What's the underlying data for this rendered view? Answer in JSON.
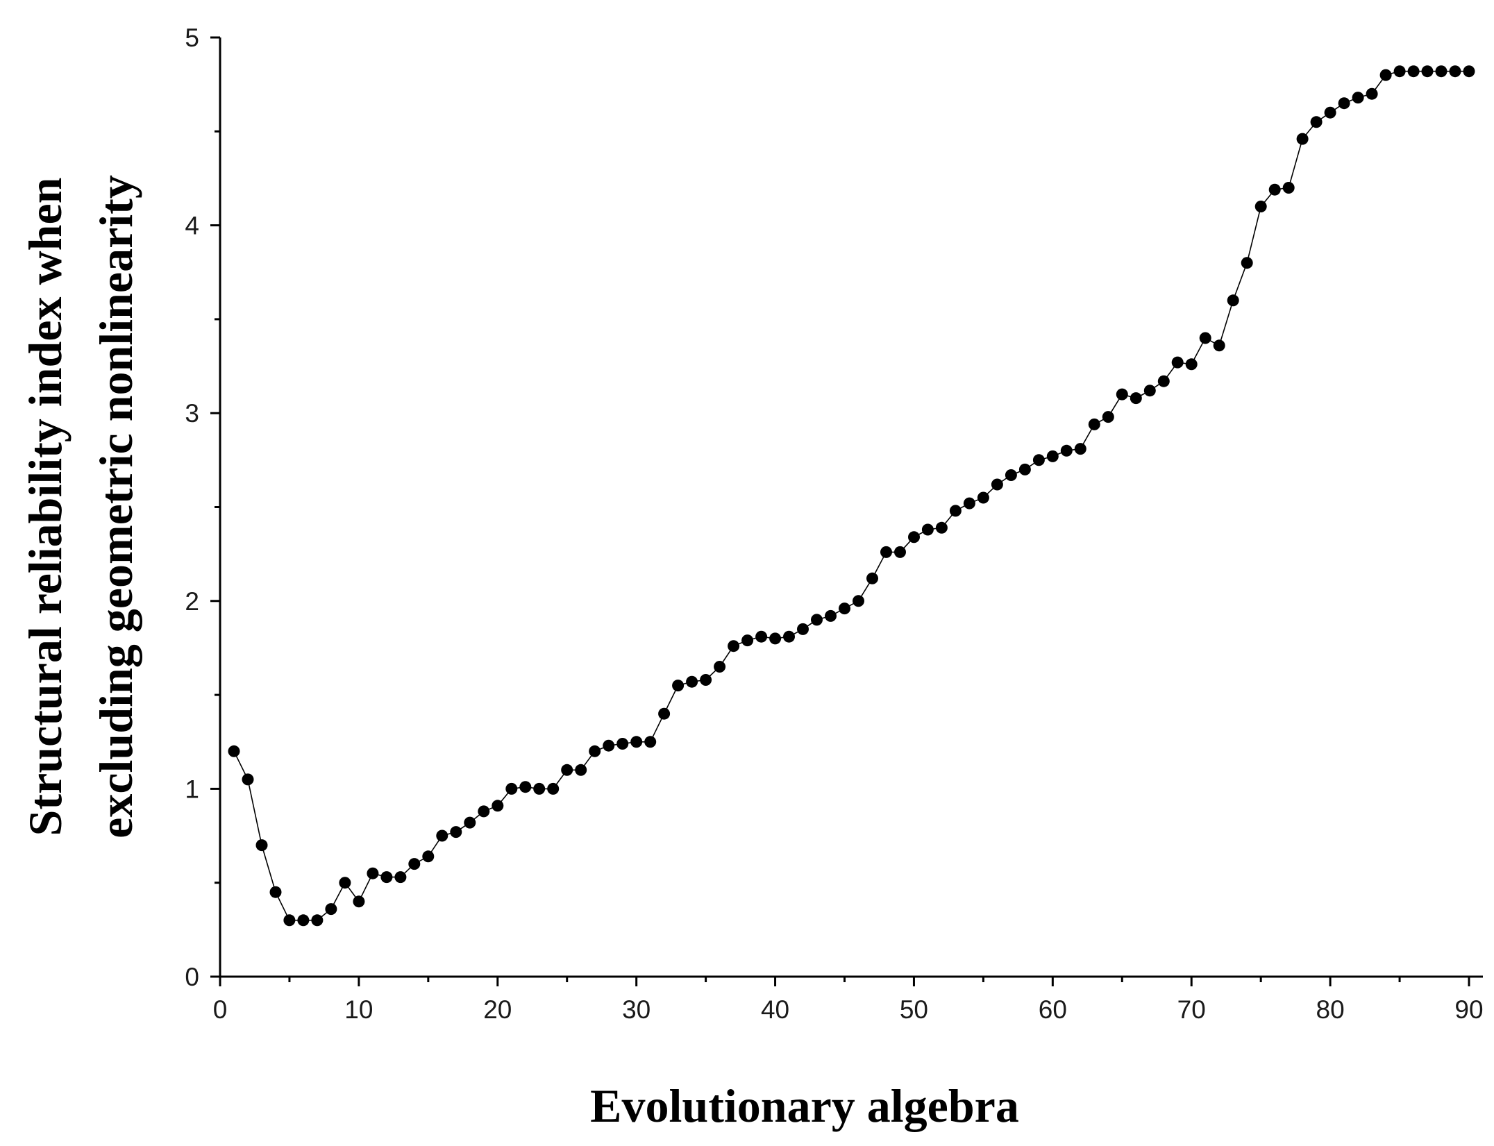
{
  "chart_data": {
    "type": "line",
    "title": "",
    "xlabel": "Evolutionary algebra",
    "ylabel_lines": [
      "Structural reliability index when",
      "excluding geometric nonlinearity"
    ],
    "xlim": [
      0,
      91
    ],
    "ylim": [
      0,
      5
    ],
    "x_ticks": [
      0,
      10,
      20,
      30,
      40,
      50,
      60,
      70,
      80,
      90
    ],
    "y_ticks": [
      0,
      1,
      2,
      3,
      4,
      5
    ],
    "x_tick_labels": [
      "0",
      "10",
      "20",
      "30",
      "40",
      "50",
      "60",
      "70",
      "80",
      "90"
    ],
    "y_tick_labels": [
      "0",
      "1",
      "2",
      "3",
      "4",
      "5"
    ],
    "grid": false,
    "legend": "none",
    "marker": "filled-circle",
    "color": "#000000",
    "x": [
      1,
      2,
      3,
      4,
      5,
      6,
      7,
      8,
      9,
      10,
      11,
      12,
      13,
      14,
      15,
      16,
      17,
      18,
      19,
      20,
      21,
      22,
      23,
      24,
      25,
      26,
      27,
      28,
      29,
      30,
      31,
      32,
      33,
      34,
      35,
      36,
      37,
      38,
      39,
      40,
      41,
      42,
      43,
      44,
      45,
      46,
      47,
      48,
      49,
      50,
      51,
      52,
      53,
      54,
      55,
      56,
      57,
      58,
      59,
      60,
      61,
      62,
      63,
      64,
      65,
      66,
      67,
      68,
      69,
      70,
      71,
      72,
      73,
      74,
      75,
      76,
      77,
      78,
      79,
      80,
      81,
      82,
      83,
      84,
      85,
      86,
      87,
      88,
      89,
      90
    ],
    "y": [
      1.2,
      1.05,
      0.7,
      0.45,
      0.3,
      0.3,
      0.3,
      0.36,
      0.5,
      0.4,
      0.55,
      0.53,
      0.53,
      0.6,
      0.64,
      0.75,
      0.77,
      0.82,
      0.88,
      0.91,
      1.0,
      1.01,
      1.0,
      1.0,
      1.1,
      1.1,
      1.2,
      1.23,
      1.24,
      1.25,
      1.25,
      1.4,
      1.55,
      1.57,
      1.58,
      1.65,
      1.76,
      1.79,
      1.81,
      1.8,
      1.81,
      1.85,
      1.9,
      1.92,
      1.96,
      2.0,
      2.12,
      2.26,
      2.26,
      2.34,
      2.38,
      2.39,
      2.48,
      2.52,
      2.55,
      2.62,
      2.67,
      2.7,
      2.75,
      2.77,
      2.8,
      2.81,
      2.94,
      2.98,
      3.1,
      3.08,
      3.12,
      3.17,
      3.27,
      3.26,
      3.4,
      3.36,
      3.6,
      3.8,
      4.1,
      4.19,
      4.2,
      4.46,
      4.55,
      4.6,
      4.65,
      4.68,
      4.7,
      4.8,
      4.82,
      4.82,
      4.82,
      4.82,
      4.82,
      4.82
    ]
  }
}
